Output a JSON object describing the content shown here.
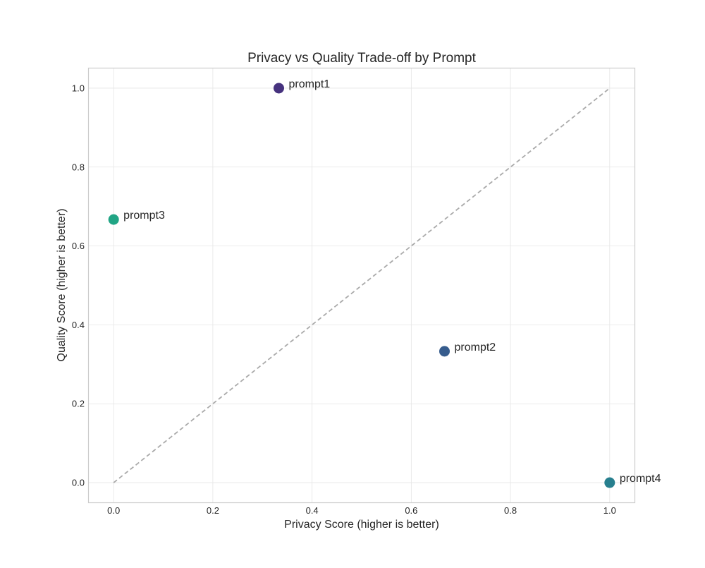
{
  "chart_data": {
    "type": "scatter",
    "title": "Privacy vs Quality Trade-off by Prompt",
    "xlabel": "Privacy Score (higher is better)",
    "ylabel": "Quality Score (higher is better)",
    "xlim": [
      -0.05,
      1.05
    ],
    "ylim": [
      -0.05,
      1.05
    ],
    "xticks": [
      "0.0",
      "0.2",
      "0.4",
      "0.6",
      "0.8",
      "1.0"
    ],
    "yticks": [
      "0.0",
      "0.2",
      "0.4",
      "0.6",
      "0.8",
      "1.0"
    ],
    "grid": true,
    "reference_line": {
      "style": "dashed",
      "color": "#aaaaaa",
      "from": [
        0,
        0
      ],
      "to": [
        1,
        1
      ]
    },
    "points": [
      {
        "label": "prompt1",
        "x": 0.333,
        "y": 1.0,
        "color": "#46327e"
      },
      {
        "label": "prompt2",
        "x": 0.667,
        "y": 0.333,
        "color": "#365c8d"
      },
      {
        "label": "prompt3",
        "x": 0.0,
        "y": 0.667,
        "color": "#21a585"
      },
      {
        "label": "prompt4",
        "x": 1.0,
        "y": 0.0,
        "color": "#277f8e"
      }
    ]
  }
}
